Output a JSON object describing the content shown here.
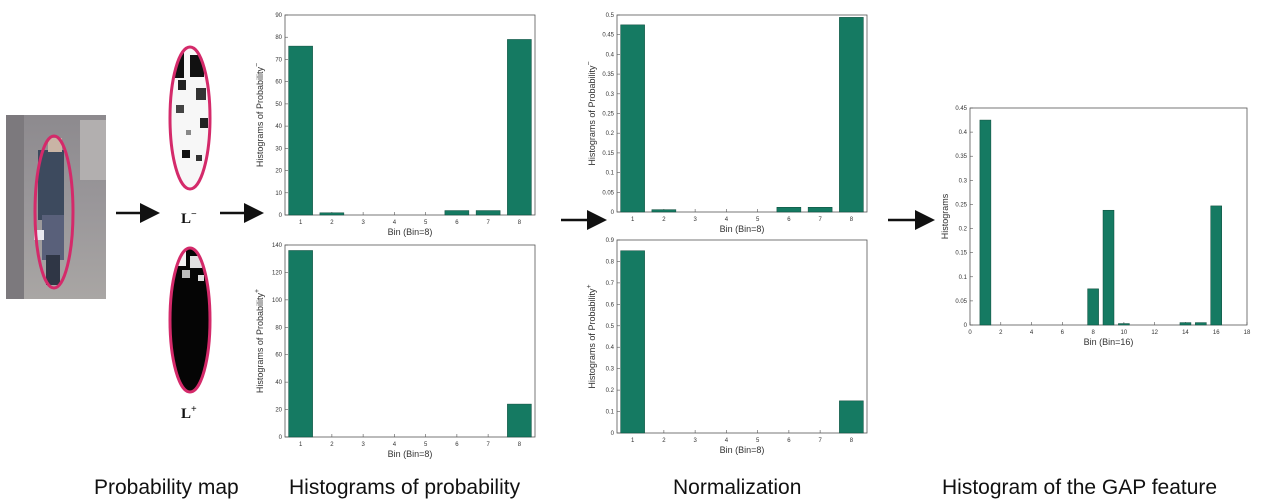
{
  "stage_labels": {
    "probability_map": "Probability map",
    "histograms": "Histograms of probability",
    "normalization": "Normalization",
    "gap_feature": "Histogram of the GAP feature"
  },
  "map_labels": {
    "neg": "L",
    "neg_sup": "−",
    "pos": "L",
    "pos_sup": "+"
  },
  "colors": {
    "bar": "#157a62",
    "ellipse": "#d42a6a",
    "arrow": "#111111"
  },
  "chart_data": [
    {
      "id": "hist-neg",
      "type": "bar",
      "categories": [
        "1",
        "2",
        "3",
        "4",
        "5",
        "6",
        "7",
        "8"
      ],
      "values": [
        76,
        1,
        0,
        0,
        0,
        2,
        2,
        79
      ],
      "ylim": [
        0,
        90
      ],
      "yticks": [
        "0",
        "10",
        "20",
        "30",
        "40",
        "50",
        "60",
        "70",
        "80",
        "90"
      ],
      "xlabel": "Bin (Bin=8)",
      "ylabel": "Histograms of Probability",
      "ylabel_sup": "−"
    },
    {
      "id": "hist-pos",
      "type": "bar",
      "categories": [
        "1",
        "2",
        "3",
        "4",
        "5",
        "6",
        "7",
        "8"
      ],
      "values": [
        136,
        0,
        0,
        0,
        0,
        0,
        0,
        24
      ],
      "ylim": [
        0,
        140
      ],
      "yticks": [
        "0",
        "20",
        "40",
        "60",
        "80",
        "100",
        "120",
        "140"
      ],
      "xlabel": "Bin (Bin=8)",
      "ylabel": "Histograms of Probability",
      "ylabel_sup": "+"
    },
    {
      "id": "norm-neg",
      "type": "bar",
      "categories": [
        "1",
        "2",
        "3",
        "4",
        "5",
        "6",
        "7",
        "8"
      ],
      "values": [
        0.475,
        0.006,
        0,
        0,
        0,
        0.012,
        0.012,
        0.494
      ],
      "ylim": [
        0,
        0.5
      ],
      "yticks": [
        "0",
        "0.05",
        "0.1",
        "0.15",
        "0.2",
        "0.25",
        "0.3",
        "0.35",
        "0.4",
        "0.45",
        "0.5"
      ],
      "xlabel": "Bin (Bin=8)",
      "ylabel": "Histograms of Probability",
      "ylabel_sup": "−"
    },
    {
      "id": "norm-pos",
      "type": "bar",
      "categories": [
        "1",
        "2",
        "3",
        "4",
        "5",
        "6",
        "7",
        "8"
      ],
      "values": [
        0.85,
        0,
        0,
        0,
        0,
        0,
        0,
        0.15
      ],
      "ylim": [
        0,
        0.9
      ],
      "yticks": [
        "0",
        "0.1",
        "0.2",
        "0.3",
        "0.4",
        "0.5",
        "0.6",
        "0.7",
        "0.8",
        "0.9"
      ],
      "xlabel": "Bin (Bin=8)",
      "ylabel": "Histograms of Probability",
      "ylabel_sup": "+"
    },
    {
      "id": "gap",
      "type": "bar",
      "x": [
        1,
        8,
        9,
        10,
        14,
        15,
        16
      ],
      "values": [
        0.425,
        0.075,
        0.238,
        0.003,
        0.005,
        0.005,
        0.247
      ],
      "xlim": [
        0,
        18
      ],
      "xticks": [
        "0",
        "2",
        "4",
        "6",
        "8",
        "10",
        "12",
        "14",
        "16",
        "18"
      ],
      "ylim": [
        0,
        0.45
      ],
      "yticks": [
        "0",
        "0.05",
        "0.1",
        "0.15",
        "0.2",
        "0.25",
        "0.3",
        "0.35",
        "0.4",
        "0.45"
      ],
      "xlabel": "Bin (Bin=16)",
      "ylabel": "Histograms"
    }
  ]
}
